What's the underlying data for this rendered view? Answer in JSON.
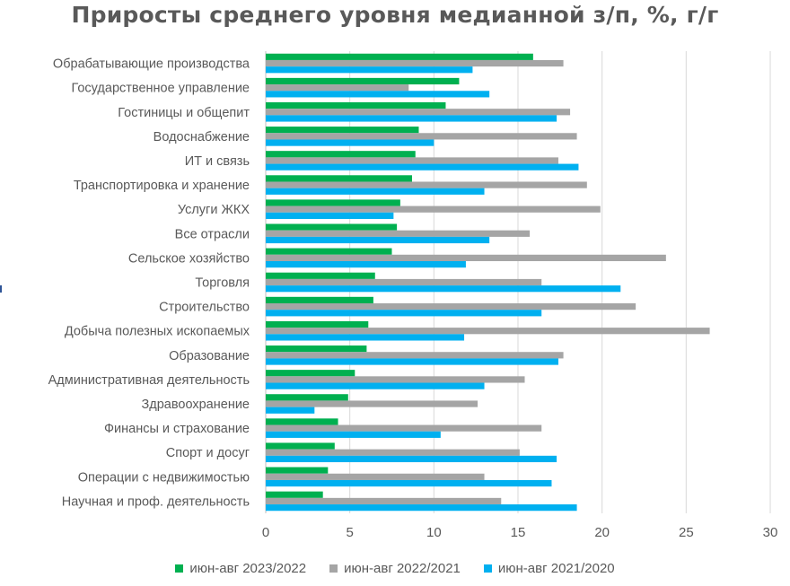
{
  "chart_data": {
    "type": "bar",
    "orientation": "horizontal",
    "title": "Приросты среднего уровня медианной з/п, %, г/г",
    "xlabel": "",
    "ylabel": "",
    "xlim": [
      0,
      30
    ],
    "xticks": [
      0,
      5,
      10,
      15,
      20,
      25,
      30
    ],
    "grid": "vertical",
    "legend_position": "bottom",
    "categories": [
      "Обрабатывающие производства",
      "Государственное управление",
      "Гостиницы и общепит",
      "Водоснабжение",
      "ИТ и связь",
      "Транспортировка и хранение",
      "Услуги ЖКХ",
      "Все отрасли",
      "Сельское хозяйство",
      "Торговля",
      "Строительство",
      "Добыча полезных ископаемых",
      "Образование",
      "Административная деятельность",
      "Здравоохранение",
      "Финансы и страхование",
      "Спорт и досуг",
      "Операции с недвижимостью",
      "Научная и проф. деятельность"
    ],
    "series": [
      {
        "name": "июн-авг 2023/2022",
        "color": "#00b050",
        "values": [
          15.9,
          11.5,
          10.7,
          9.1,
          8.9,
          8.7,
          8.0,
          7.8,
          7.5,
          6.5,
          6.4,
          6.1,
          6.0,
          5.3,
          4.9,
          4.3,
          4.1,
          3.7,
          3.4
        ]
      },
      {
        "name": "июн-авг 2022/2021",
        "color": "#a5a5a5",
        "values": [
          17.7,
          8.5,
          18.1,
          18.5,
          17.4,
          19.1,
          19.9,
          15.7,
          23.8,
          16.4,
          22.0,
          26.4,
          17.7,
          15.4,
          12.6,
          16.4,
          15.1,
          13.0,
          14.0
        ]
      },
      {
        "name": "июн-авг 2021/2020",
        "color": "#00b0f0",
        "values": [
          12.3,
          13.3,
          17.3,
          10.0,
          18.6,
          13.0,
          7.6,
          13.3,
          11.9,
          21.1,
          16.4,
          11.8,
          17.4,
          13.0,
          2.9,
          10.4,
          17.3,
          17.0,
          18.5
        ]
      }
    ]
  }
}
